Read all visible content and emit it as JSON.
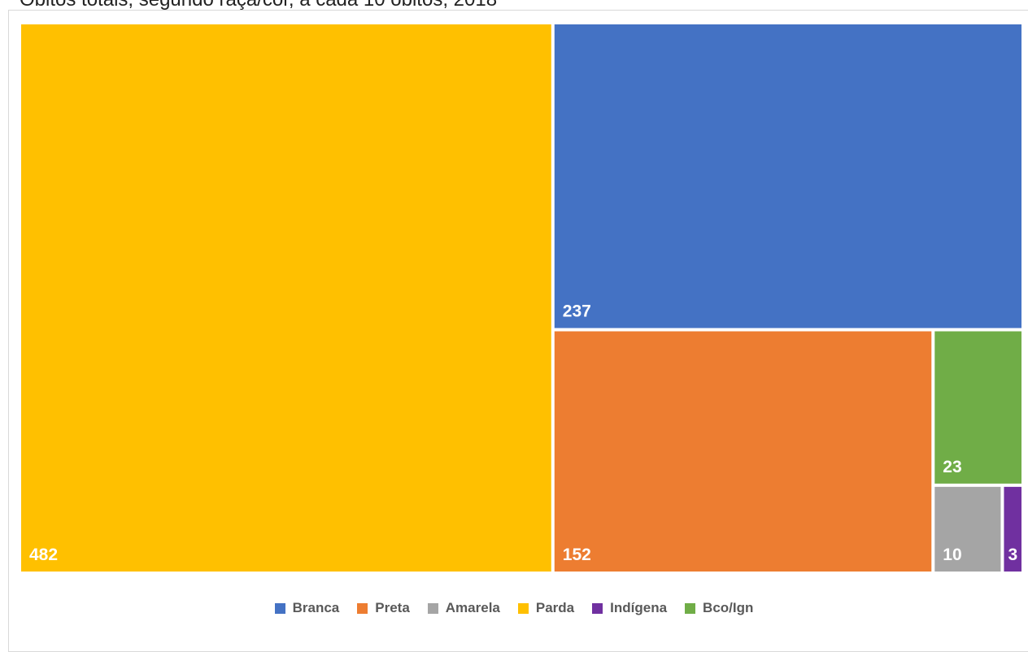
{
  "title": "Óbitos totais, segundo raça/cor, a cada 10 óbitos, 2018",
  "chart_data": {
    "type": "treemap",
    "series": [
      {
        "name": "Parda",
        "value": 482,
        "color": "#FFC000"
      },
      {
        "name": "Branca",
        "value": 237,
        "color": "#4472C4"
      },
      {
        "name": "Preta",
        "value": 152,
        "color": "#ED7D31"
      },
      {
        "name": "Bco/Ign",
        "value": 23,
        "color": "#70AD47"
      },
      {
        "name": "Amarela",
        "value": 10,
        "color": "#A5A5A5"
      },
      {
        "name": "Indígena",
        "value": 3,
        "color": "#7030A0"
      }
    ],
    "legend": {
      "position": "bottom",
      "items": [
        {
          "label": "Branca",
          "color": "#4472C4"
        },
        {
          "label": "Preta",
          "color": "#ED7D31"
        },
        {
          "label": "Amarela",
          "color": "#A5A5A5"
        },
        {
          "label": "Parda",
          "color": "#FFC000"
        },
        {
          "label": "Indígena",
          "color": "#7030A0"
        },
        {
          "label": "Bco/Ign",
          "color": "#70AD47"
        }
      ]
    }
  }
}
